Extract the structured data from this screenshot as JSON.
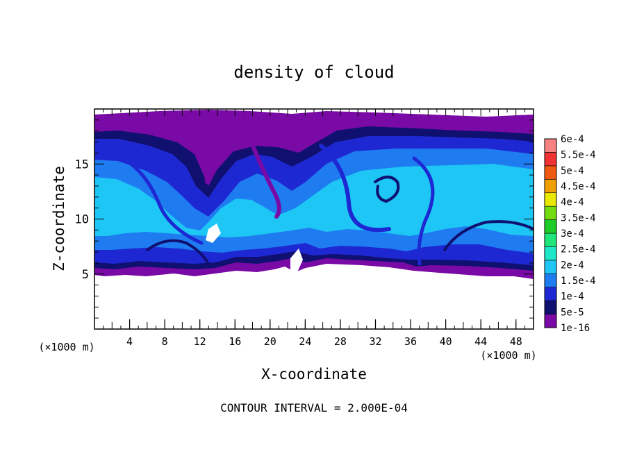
{
  "chart_data": {
    "type": "heatmap",
    "title": "density of cloud",
    "xlabel": "X-coordinate",
    "ylabel": "Z-coordinate",
    "x_unit_left": "(×1000 m)",
    "x_unit_right": "(×1000 m)",
    "xlim": [
      0,
      50
    ],
    "ylim": [
      0,
      20
    ],
    "x_ticks": [
      4,
      8,
      12,
      16,
      20,
      24,
      28,
      32,
      36,
      40,
      44,
      48
    ],
    "y_ticks": [
      5,
      10,
      15
    ],
    "footer": "CONTOUR INTERVAL = 2.000E-04",
    "colorbar": {
      "levels": [
        "1e-16",
        "5e-5",
        "1e-4",
        "1.5e-4",
        "2e-4",
        "2.5e-4",
        "3e-4",
        "3.5e-4",
        "4e-4",
        "4.5e-4",
        "5e-4",
        "5.5e-4",
        "6e-4"
      ],
      "colors": [
        "#7a0aa6",
        "#101070",
        "#1e28d2",
        "#1e7cf0",
        "#1ec6f5",
        "#1ee8c8",
        "#1ee67a",
        "#1ecc28",
        "#72dc10",
        "#e8e800",
        "#f0a000",
        "#f05a10",
        "#f03232",
        "#f88282"
      ]
    },
    "field": {
      "cloud_base_km_min": 4.9,
      "cloud_top_km_max": 19.5,
      "core_min": "2e-4",
      "core_max": "2e-4"
    }
  }
}
